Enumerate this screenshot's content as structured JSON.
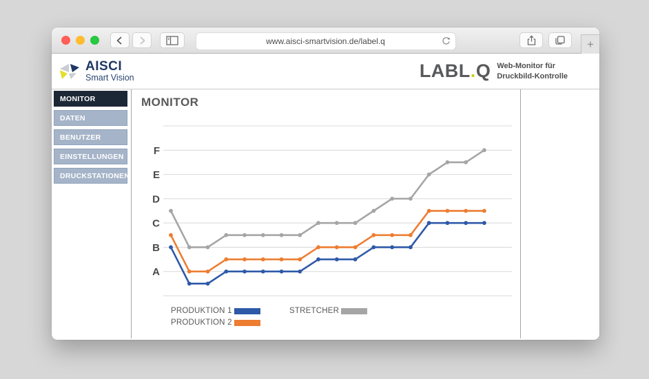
{
  "browser": {
    "url": "www.aisci-smartvision.de/label.q",
    "new_tab_label": "+",
    "traffic_lights": {
      "close": "#ff5f57",
      "minimize": "#febc2e",
      "zoom": "#28c840"
    },
    "icons": [
      "back-icon",
      "forward-icon",
      "sidebar-toggle-icon",
      "refresh-icon",
      "share-icon",
      "tabs-icon",
      "new-tab-icon"
    ]
  },
  "header": {
    "brand": "AISCI",
    "brand_subtitle": "Smart Vision",
    "brand_color": "#1f3864",
    "accent_yellow": "#dfdd20",
    "product": "LABL",
    "product_dot": ".",
    "product_q": "Q",
    "tagline_line1": "Web-Monitor für",
    "tagline_line2": "Druckbild-Kontrolle"
  },
  "sidebar": {
    "active_bg": "#1d2836",
    "inactive_bg": "#a5b4c8",
    "items": [
      {
        "label": "MONITOR",
        "active": true
      },
      {
        "label": "DATEN",
        "active": false
      },
      {
        "label": "BENUTZER",
        "active": false
      },
      {
        "label": "EINSTELLUNGEN",
        "active": false
      },
      {
        "label": "DRUCKSTATIONEN",
        "active": false
      }
    ]
  },
  "main": {
    "title": "MONITOR"
  },
  "chart_data": {
    "type": "line",
    "title": "",
    "x": [
      1,
      2,
      3,
      4,
      5,
      6,
      7,
      8,
      9,
      10,
      11,
      12,
      13,
      14,
      15,
      16,
      17,
      18
    ],
    "y_axis_labels": [
      "A",
      "B",
      "C",
      "D",
      "E",
      "F"
    ],
    "y_mapping": "A=1, B=2, C=3, D=4, E=5, F=6",
    "ylim": [
      0,
      7
    ],
    "grid": true,
    "markers": true,
    "legend_position": "bottom-left",
    "series": [
      {
        "name": "PRODUKTION 1",
        "color": "#2e59a8",
        "values": [
          2,
          0.5,
          0.5,
          1,
          1,
          1,
          1,
          1,
          1.5,
          1.5,
          1.5,
          2,
          2,
          2,
          3,
          3,
          3,
          3
        ]
      },
      {
        "name": "PRODUKTION 2",
        "color": "#ed7d31",
        "values": [
          2.5,
          1,
          1,
          1.5,
          1.5,
          1.5,
          1.5,
          1.5,
          2,
          2,
          2,
          2.5,
          2.5,
          2.5,
          3.5,
          3.5,
          3.5,
          3.5
        ]
      },
      {
        "name": "STRETCHER",
        "color": "#a5a5a5",
        "values": [
          3.5,
          2,
          2,
          2.5,
          2.5,
          2.5,
          2.5,
          2.5,
          3,
          3,
          3,
          3.5,
          4,
          4,
          5,
          5.5,
          5.5,
          6
        ]
      }
    ]
  }
}
